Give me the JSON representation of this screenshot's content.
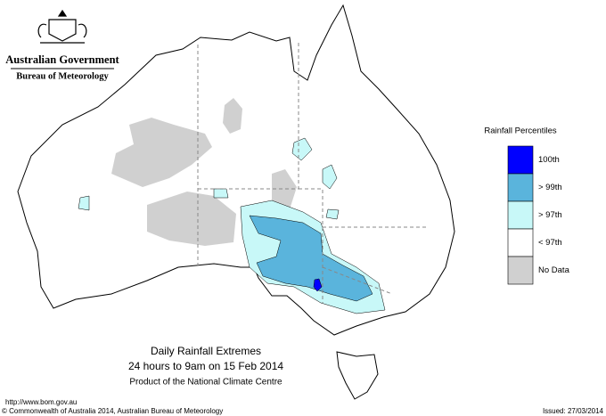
{
  "header": {
    "government": "Australian Government",
    "bureau": "Bureau of Meteorology"
  },
  "legend": {
    "title": "Rainfall Percentiles",
    "items": [
      {
        "label": "100th",
        "color": "#0000ff"
      },
      {
        "label": "> 99th",
        "color": "#5ab4dc"
      },
      {
        "label": "> 97th",
        "color": "#c8f8f8"
      },
      {
        "label": "< 97th",
        "color": "#ffffff"
      },
      {
        "label": "No Data",
        "color": "#d0d0d0"
      }
    ]
  },
  "caption": {
    "title": "Daily Rainfall Extremes",
    "period": "24 hours to 9am on 15 Feb 2014",
    "product": "Product of the National Climate Centre"
  },
  "footer": {
    "url": "http://www.bom.gov.au",
    "copyright": "© Commonwealth of Australia 2014, Australian Bureau of Meteorology",
    "issued": "Issued: 27/03/2014"
  }
}
